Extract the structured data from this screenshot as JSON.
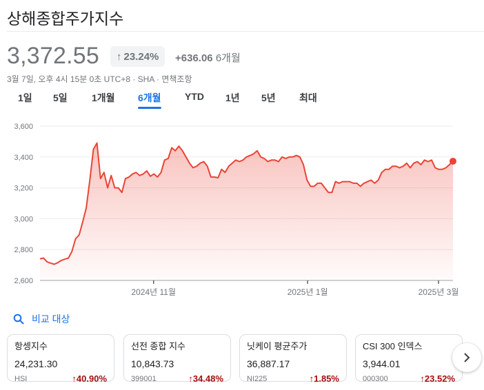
{
  "title": "상해종합주가지수",
  "price": "3,372.55",
  "change_pct": "23.24%",
  "change_abs": "+636.06",
  "change_period": "6개월",
  "meta": "3월 7일, 오후 4시 15분 0초 UTC+8 · SHA · 면책조항",
  "tabs": [
    "1일",
    "5일",
    "1개월",
    "6개월",
    "YTD",
    "1년",
    "5년",
    "최대"
  ],
  "active_tab": "6개월",
  "accent_color": "#1a73e8",
  "line_color": "#ea4335",
  "compare_label": "비교 대상",
  "cards": [
    {
      "name": "항셍지수",
      "value": "24,231.30",
      "code": "HSI",
      "pct": "40.90%"
    },
    {
      "name": "선전 종합 지수",
      "value": "10,843.73",
      "code": "399001",
      "pct": "34.48%"
    },
    {
      "name": "닛케이 평균주가",
      "value": "36,887.17",
      "code": "NI225",
      "pct": "1.85%"
    },
    {
      "name": "CSI 300 인덱스",
      "value": "3,944.01",
      "code": "000300",
      "pct": "23.52%"
    }
  ],
  "chart_data": {
    "type": "area",
    "y_ticks": [
      "3,600",
      "3,400",
      "3,200",
      "3,000",
      "2,800",
      "2,600"
    ],
    "ylim": [
      2600,
      3600
    ],
    "x_ticks": [
      {
        "label": "2024년 11월",
        "t": 0.275
      },
      {
        "label": "2025년 1월",
        "t": 0.648
      },
      {
        "label": "2025년 3월",
        "t": 0.965
      }
    ],
    "grid": true,
    "values": [
      2740,
      2745,
      2720,
      2712,
      2705,
      2715,
      2730,
      2738,
      2745,
      2790,
      2870,
      2895,
      2980,
      3070,
      3250,
      3450,
      3490,
      3260,
      3300,
      3200,
      3280,
      3200,
      3200,
      3170,
      3260,
      3270,
      3290,
      3300,
      3280,
      3290,
      3310,
      3275,
      3290,
      3270,
      3300,
      3380,
      3390,
      3460,
      3440,
      3470,
      3440,
      3400,
      3360,
      3330,
      3340,
      3360,
      3370,
      3340,
      3270,
      3270,
      3265,
      3320,
      3300,
      3340,
      3360,
      3380,
      3370,
      3380,
      3400,
      3410,
      3420,
      3440,
      3400,
      3390,
      3370,
      3380,
      3380,
      3370,
      3400,
      3390,
      3400,
      3400,
      3410,
      3400,
      3350,
      3250,
      3210,
      3210,
      3230,
      3230,
      3200,
      3170,
      3170,
      3240,
      3230,
      3240,
      3240,
      3240,
      3230,
      3230,
      3210,
      3230,
      3240,
      3250,
      3230,
      3250,
      3300,
      3320,
      3320,
      3340,
      3340,
      3330,
      3340,
      3360,
      3330,
      3360,
      3370,
      3350,
      3380,
      3370,
      3380,
      3330,
      3320,
      3320,
      3330,
      3350,
      3372.55
    ]
  },
  "next_icon": "chevron-right-icon",
  "compare_icon": "search-icon"
}
